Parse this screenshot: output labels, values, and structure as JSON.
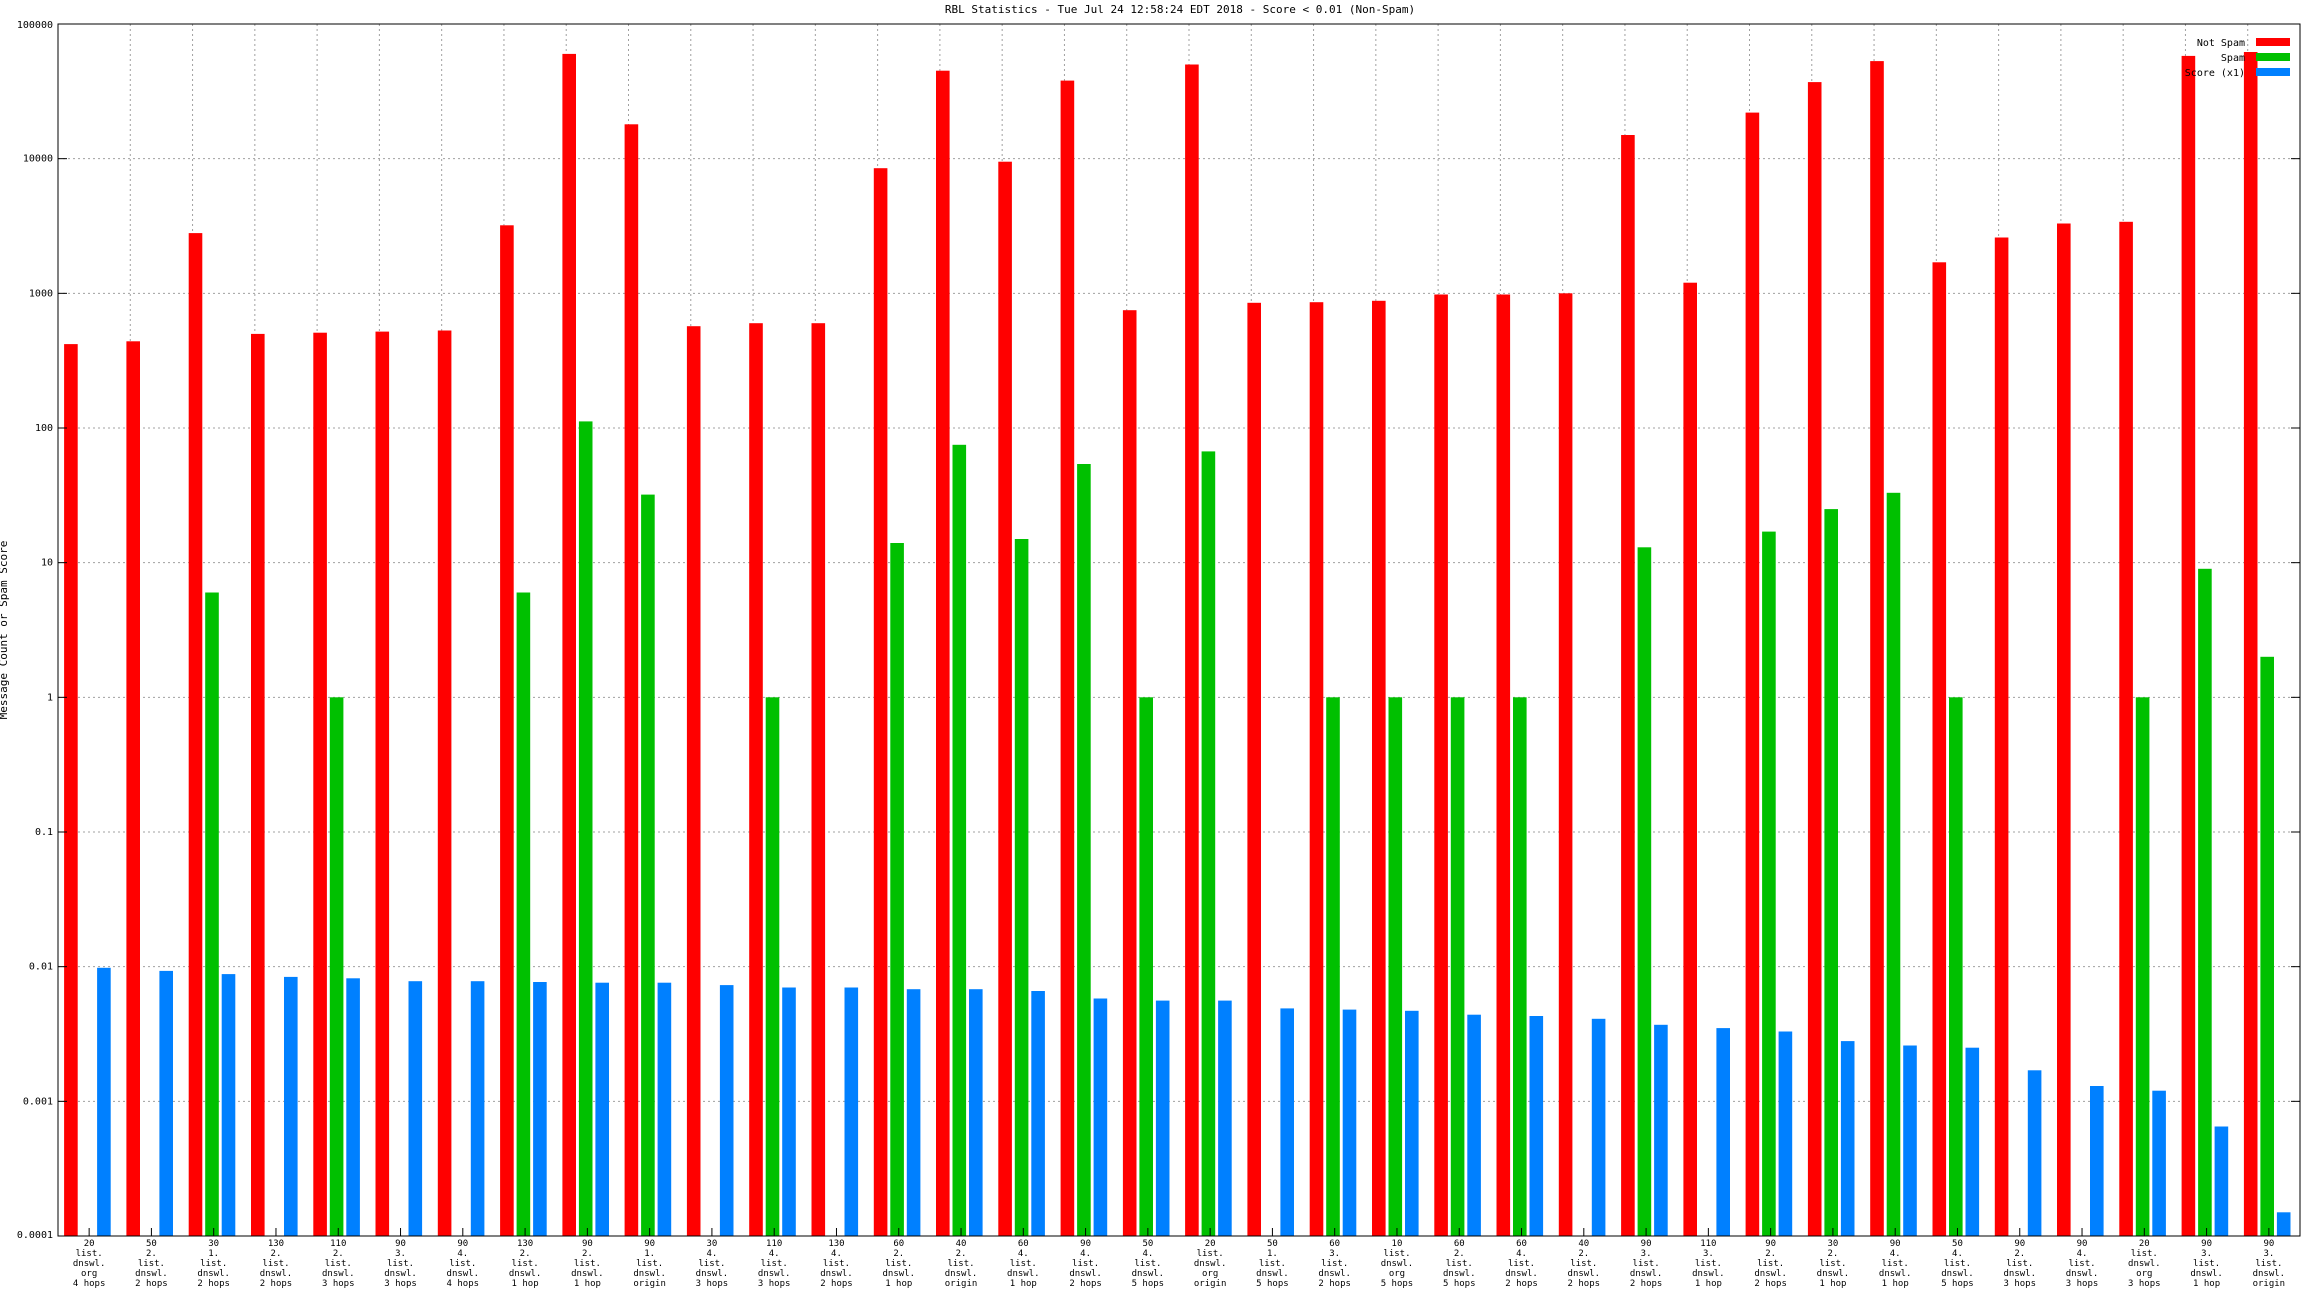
{
  "chart_data": {
    "type": "bar",
    "title": "RBL Statistics - Tue Jul 24 12:58:24 EDT 2018 - Score < 0.01 (Non-Spam)",
    "ylabel": "Message Count or Spam Score",
    "xlabel": "",
    "yscale": "log",
    "ylim": [
      0.0001,
      100000
    ],
    "yticks": [
      "100000",
      "10000",
      "1000",
      "100",
      "10",
      "1",
      "0.1",
      "0.01",
      "0.001",
      "0.0001"
    ],
    "grid": true,
    "legend_position": "top-right",
    "categories": [
      [
        "20",
        "list.",
        "dnswl.",
        "org",
        "4 hops"
      ],
      [
        "50",
        "2.",
        "list.",
        "dnswl.",
        "2 hops"
      ],
      [
        "30",
        "1.",
        "list.",
        "dnswl.",
        "2 hops"
      ],
      [
        "130",
        "2.",
        "list.",
        "dnswl.",
        "2 hops"
      ],
      [
        "110",
        "2.",
        "list.",
        "dnswl.",
        "3 hops"
      ],
      [
        "90",
        "3.",
        "list.",
        "dnswl.",
        "3 hops"
      ],
      [
        "90",
        "4.",
        "list.",
        "dnswl.",
        "4 hops"
      ],
      [
        "130",
        "2.",
        "list.",
        "dnswl.",
        "1 hop"
      ],
      [
        "90",
        "2.",
        "list.",
        "dnswl.",
        "1 hop"
      ],
      [
        "90",
        "1.",
        "list.",
        "dnswl.",
        "origin"
      ],
      [
        "30",
        "4.",
        "list.",
        "dnswl.",
        "3 hops"
      ],
      [
        "110",
        "4.",
        "list.",
        "dnswl.",
        "3 hops"
      ],
      [
        "130",
        "4.",
        "list.",
        "dnswl.",
        "2 hops"
      ],
      [
        "60",
        "2.",
        "list.",
        "dnswl.",
        "1 hop"
      ],
      [
        "40",
        "2.",
        "list.",
        "dnswl.",
        "origin"
      ],
      [
        "60",
        "4.",
        "list.",
        "dnswl.",
        "1 hop"
      ],
      [
        "90",
        "4.",
        "list.",
        "dnswl.",
        "2 hops"
      ],
      [
        "50",
        "4.",
        "list.",
        "dnswl.",
        "5 hops"
      ],
      [
        "20",
        "list.",
        "dnswl.",
        "org",
        "origin"
      ],
      [
        "50",
        "1.",
        "list.",
        "dnswl.",
        "5 hops"
      ],
      [
        "60",
        "3.",
        "list.",
        "dnswl.",
        "2 hops"
      ],
      [
        "10",
        "list.",
        "dnswl.",
        "org",
        "5 hops"
      ],
      [
        "60",
        "2.",
        "list.",
        "dnswl.",
        "5 hops"
      ],
      [
        "60",
        "4.",
        "list.",
        "dnswl.",
        "2 hops"
      ],
      [
        "40",
        "2.",
        "list.",
        "dnswl.",
        "2 hops"
      ],
      [
        "90",
        "3.",
        "list.",
        "dnswl.",
        "2 hops"
      ],
      [
        "110",
        "3.",
        "list.",
        "dnswl.",
        "1 hop"
      ],
      [
        "90",
        "2.",
        "list.",
        "dnswl.",
        "2 hops"
      ],
      [
        "30",
        "2.",
        "list.",
        "dnswl.",
        "1 hop"
      ],
      [
        "90",
        "4.",
        "list.",
        "dnswl.",
        "1 hop"
      ],
      [
        "50",
        "4.",
        "list.",
        "dnswl.",
        "5 hops"
      ],
      [
        "90",
        "2.",
        "list.",
        "dnswl.",
        "3 hops"
      ],
      [
        "90",
        "4.",
        "list.",
        "dnswl.",
        "3 hops"
      ],
      [
        "20",
        "list.",
        "dnswl.",
        "org",
        "3 hops"
      ],
      [
        "90",
        "3.",
        "list.",
        "dnswl.",
        "1 hop"
      ],
      [
        "90",
        "3.",
        "list.",
        "dnswl.",
        "origin"
      ]
    ],
    "series": [
      {
        "name": "Not Spam",
        "color": "#ff0000",
        "values": [
          420,
          440,
          2800,
          500,
          510,
          520,
          530,
          3200,
          60000,
          18000,
          570,
          600,
          600,
          8500,
          45000,
          9500,
          38000,
          750,
          50000,
          850,
          860,
          880,
          980,
          980,
          1000,
          15000,
          1200,
          22000,
          37000,
          53000,
          1700,
          2600,
          3300,
          3400,
          58000,
          62000
        ]
      },
      {
        "name": "Spam",
        "color": "#00c000",
        "values": [
          0,
          0,
          6,
          0,
          1,
          0,
          0,
          6,
          112,
          32,
          0,
          1,
          0,
          14,
          75,
          15,
          54,
          1,
          67,
          0,
          1,
          1,
          1,
          1,
          0,
          13,
          0,
          17,
          25,
          33,
          1,
          0,
          0,
          1,
          9,
          2
        ]
      },
      {
        "name": "Score (x1)",
        "color": "#0080ff",
        "values": [
          0.0098,
          0.0093,
          0.0088,
          0.0084,
          0.0082,
          0.0078,
          0.0078,
          0.0077,
          0.0076,
          0.0076,
          0.0073,
          0.007,
          0.007,
          0.0068,
          0.0068,
          0.0066,
          0.0058,
          0.0056,
          0.0056,
          0.0049,
          0.0048,
          0.0047,
          0.0044,
          0.0043,
          0.0041,
          0.0037,
          0.0035,
          0.0033,
          0.0028,
          0.0026,
          0.0025,
          0.0017,
          0.0013,
          0.0012,
          0.00065,
          0.00015
        ]
      }
    ]
  }
}
